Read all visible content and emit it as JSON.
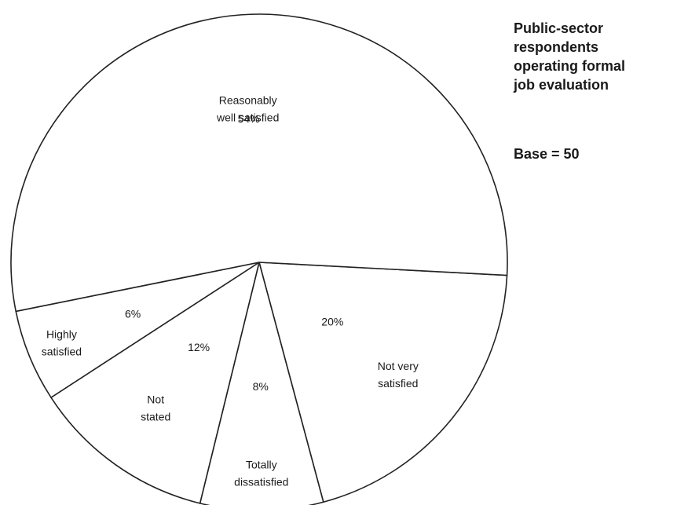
{
  "chart_data": {
    "type": "pie",
    "categories": [
      "Reasonably well satisfied",
      "Not very satisfied",
      "Totally dissatisfied",
      "Not stated",
      "Highly satisfied"
    ],
    "labels": [
      [
        "Reasonably",
        "well satisfied"
      ],
      [
        "Not very",
        "satisfied"
      ],
      [
        "Totally",
        "dissatisfied"
      ],
      [
        "Not",
        "stated"
      ],
      [
        "Highly",
        "satisfied"
      ]
    ],
    "values": [
      54,
      20,
      8,
      12,
      6
    ],
    "value_labels": [
      "54%",
      "20%",
      "8%",
      "12%",
      "6%"
    ],
    "colors": [
      "#ffffff",
      "#ffffff",
      "#ffffff",
      "#ffffff",
      "#ffffff"
    ],
    "stroke": "#222222",
    "title": "Public-sector respondents operating formal job evaluation",
    "title_lines": [
      "Public-sector",
      "respondents",
      "operating formal",
      "job evaluation"
    ],
    "base": "Base = 50"
  }
}
